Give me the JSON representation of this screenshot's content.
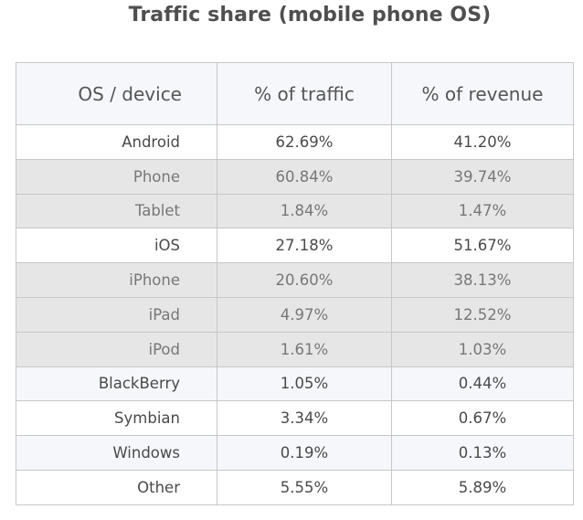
{
  "chart_data": {
    "type": "table",
    "title": "Traffic share (mobile phone OS)",
    "columns": [
      "OS / device",
      "% of traffic",
      "% of revenue"
    ],
    "rows": [
      {
        "label": "Android",
        "traffic": "62.69%",
        "revenue": "41.20%",
        "level": "main"
      },
      {
        "label": "Phone",
        "traffic": "60.84%",
        "revenue": "39.74%",
        "level": "sub"
      },
      {
        "label": "Tablet",
        "traffic": "1.84%",
        "revenue": "1.47%",
        "level": "sub"
      },
      {
        "label": "iOS",
        "traffic": "27.18%",
        "revenue": "51.67%",
        "level": "main"
      },
      {
        "label": "iPhone",
        "traffic": "20.60%",
        "revenue": "38.13%",
        "level": "sub"
      },
      {
        "label": "iPad",
        "traffic": "4.97%",
        "revenue": "12.52%",
        "level": "sub"
      },
      {
        "label": "iPod",
        "traffic": "1.61%",
        "revenue": "1.03%",
        "level": "sub"
      },
      {
        "label": "BlackBerry",
        "traffic": "1.05%",
        "revenue": "0.44%",
        "level": "main"
      },
      {
        "label": "Symbian",
        "traffic": "3.34%",
        "revenue": "0.67%",
        "level": "main"
      },
      {
        "label": "Windows",
        "traffic": "0.19%",
        "revenue": "0.13%",
        "level": "main"
      },
      {
        "label": "Other",
        "traffic": "5.55%",
        "revenue": "5.89%",
        "level": "main"
      }
    ]
  },
  "colors": {
    "header_background": "#f6f7fb",
    "sub_row_background": "#e6e6e6",
    "border": "#c7c7c7"
  }
}
